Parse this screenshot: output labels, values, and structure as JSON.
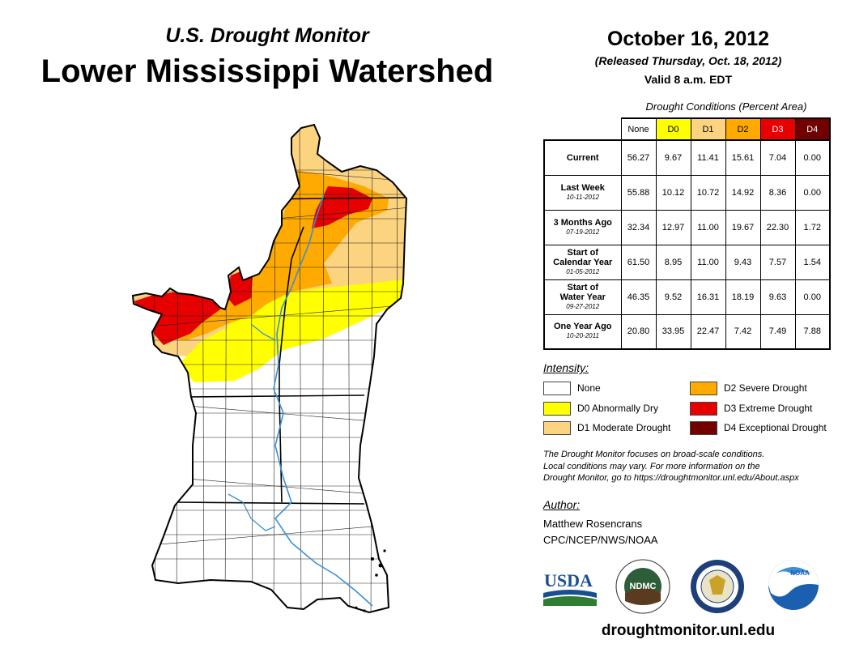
{
  "header": {
    "subtitle": "U.S. Drought Monitor",
    "title": "Lower Mississippi Watershed",
    "date": "October 16, 2012",
    "released": "(Released Thursday, Oct. 18, 2012)",
    "valid": "Valid 8 a.m. EDT"
  },
  "table": {
    "caption": "Drought Conditions (Percent Area)",
    "columns": [
      "None",
      "D0",
      "D1",
      "D2",
      "D3",
      "D4"
    ],
    "column_colors": [
      "#ffffff",
      "#ffff00",
      "#fcd37f",
      "#ffaa00",
      "#e60000",
      "#730000"
    ],
    "column_text_colors": [
      "#000000",
      "#000000",
      "#000000",
      "#000000",
      "#ffffff",
      "#ffffff"
    ],
    "rows": [
      {
        "label": "Current",
        "label2": "",
        "date": "",
        "values": [
          "56.27",
          "9.67",
          "11.41",
          "15.61",
          "7.04",
          "0.00"
        ]
      },
      {
        "label": "Last Week",
        "label2": "",
        "date": "10-11-2012",
        "values": [
          "55.88",
          "10.12",
          "10.72",
          "14.92",
          "8.36",
          "0.00"
        ]
      },
      {
        "label": "3 Months Ago",
        "label2": "",
        "date": "07-19-2012",
        "values": [
          "32.34",
          "12.97",
          "11.00",
          "19.67",
          "22.30",
          "1.72"
        ]
      },
      {
        "label": "Start of",
        "label2": "Calendar Year",
        "date": "01-05-2012",
        "values": [
          "61.50",
          "8.95",
          "11.00",
          "9.43",
          "7.57",
          "1.54"
        ]
      },
      {
        "label": "Start of",
        "label2": "Water Year",
        "date": "09-27-2012",
        "values": [
          "46.35",
          "9.52",
          "16.31",
          "18.19",
          "9.63",
          "0.00"
        ]
      },
      {
        "label": "One Year Ago",
        "label2": "",
        "date": "10-20-2011",
        "values": [
          "20.80",
          "33.95",
          "22.47",
          "7.42",
          "7.49",
          "7.88"
        ]
      }
    ]
  },
  "legend": {
    "title": "Intensity:",
    "items": [
      {
        "label": "None",
        "color": "#ffffff"
      },
      {
        "label": "D0 Abnormally Dry",
        "color": "#ffff00"
      },
      {
        "label": "D1 Moderate Drought",
        "color": "#fcd37f"
      },
      {
        "label": "D2 Severe Drought",
        "color": "#ffaa00"
      },
      {
        "label": "D3 Extreme Drought",
        "color": "#e60000"
      },
      {
        "label": "D4 Exceptional Drought",
        "color": "#730000"
      }
    ]
  },
  "note": {
    "line1": "The Drought Monitor focuses on broad-scale conditions.",
    "line2": "Local conditions may vary. For more information on the",
    "line3": "Drought Monitor, go to https://droughtmonitor.unl.edu/About.aspx"
  },
  "author": {
    "heading": "Author:",
    "name": "Matthew Rosencrans",
    "org": "CPC/NCEP/NWS/NOAA"
  },
  "logos": {
    "usda": "USDA",
    "ndmc": "NDMC",
    "noaa": "NOAA"
  },
  "footer": {
    "url": "droughtmonitor.unl.edu"
  },
  "colors": {
    "river": "#3a8fd6",
    "d0": "#ffff00",
    "d1": "#fcd37f",
    "d2": "#ffaa00",
    "d3": "#e60000"
  }
}
